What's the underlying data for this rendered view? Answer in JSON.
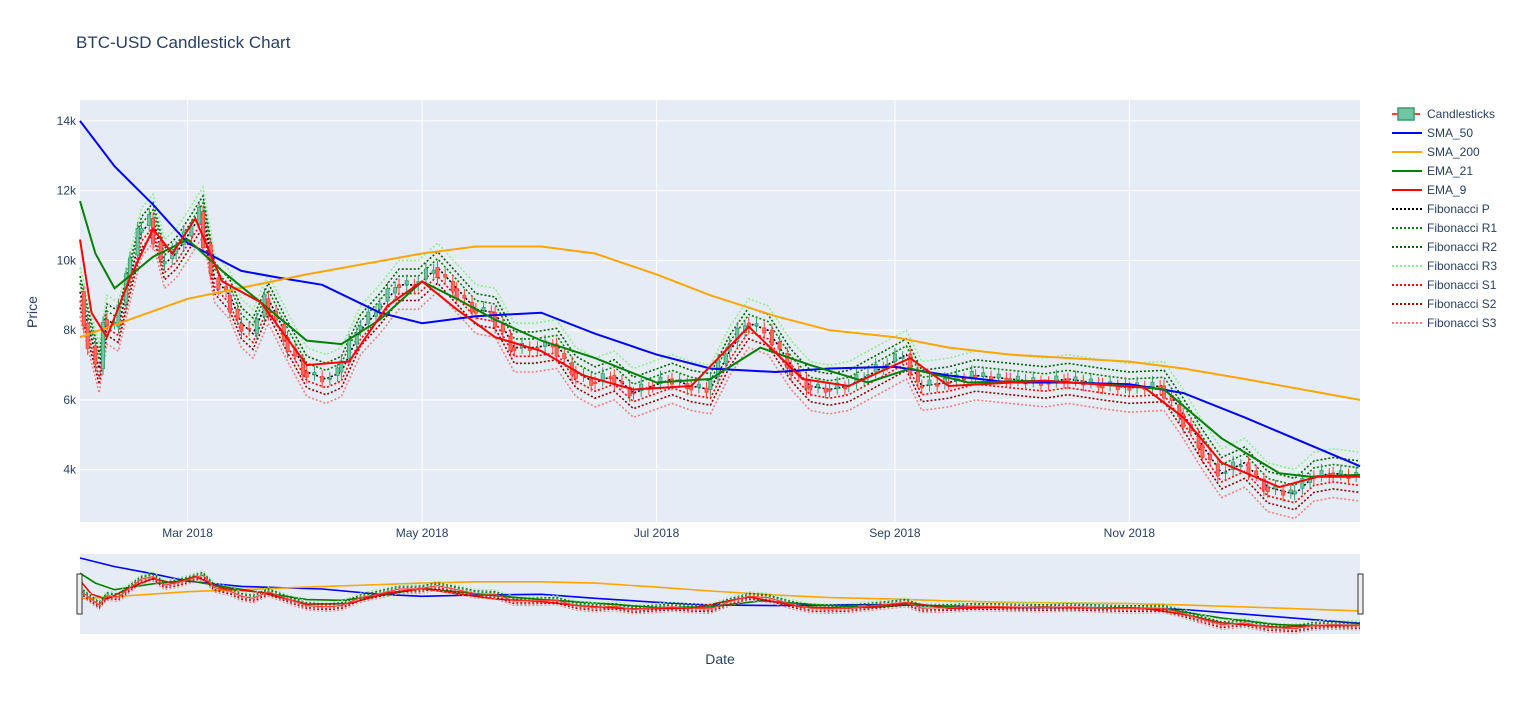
{
  "title": "BTC-USD Candlestick Chart",
  "chart_data": {
    "type": "line",
    "title": "BTC-USD Candlestick Chart",
    "xlabel": "Date",
    "ylabel": "Price",
    "x_range": [
      "2018-02-01",
      "2018-12-31"
    ],
    "ylim": [
      2500,
      14600
    ],
    "y_ticks": [
      4000,
      6000,
      8000,
      10000,
      12000,
      14000
    ],
    "y_tick_labels": [
      "4k",
      "6k",
      "8k",
      "10k",
      "12k",
      "14k"
    ],
    "x_ticks": [
      "2018-03-01",
      "2018-05-01",
      "2018-07-01",
      "2018-09-01",
      "2018-11-01"
    ],
    "x_tick_labels": [
      "Mar 2018",
      "May 2018",
      "Jul 2018",
      "Sep 2018",
      "Nov 2018"
    ],
    "grid": true,
    "background": "#e5ecf6",
    "legend_position": "right",
    "range_slider": true,
    "candlesticks": {
      "name": "Candlesticks",
      "increasing_color": "#3d9970",
      "decreasing_color": "#ff4136",
      "close_points": [
        [
          "2018-02-01",
          9100
        ],
        [
          "2018-02-03",
          8200
        ],
        [
          "2018-02-06",
          6900
        ],
        [
          "2018-02-08",
          8300
        ],
        [
          "2018-02-11",
          8100
        ],
        [
          "2018-02-14",
          9500
        ],
        [
          "2018-02-17",
          10800
        ],
        [
          "2018-02-20",
          11200
        ],
        [
          "2018-02-23",
          9900
        ],
        [
          "2018-02-26",
          10200
        ],
        [
          "2018-03-01",
          10700
        ],
        [
          "2018-03-05",
          11400
        ],
        [
          "2018-03-08",
          9500
        ],
        [
          "2018-03-12",
          9000
        ],
        [
          "2018-03-15",
          8200
        ],
        [
          "2018-03-18",
          7900
        ],
        [
          "2018-03-22",
          8900
        ],
        [
          "2018-03-27",
          7800
        ],
        [
          "2018-04-01",
          6800
        ],
        [
          "2018-04-06",
          6600
        ],
        [
          "2018-04-10",
          6800
        ],
        [
          "2018-04-15",
          8000
        ],
        [
          "2018-04-20",
          8600
        ],
        [
          "2018-04-25",
          9300
        ],
        [
          "2018-04-30",
          9300
        ],
        [
          "2018-05-05",
          9800
        ],
        [
          "2018-05-10",
          9200
        ],
        [
          "2018-05-15",
          8600
        ],
        [
          "2018-05-20",
          8500
        ],
        [
          "2018-05-25",
          7500
        ],
        [
          "2018-05-30",
          7500
        ],
        [
          "2018-06-05",
          7600
        ],
        [
          "2018-06-10",
          6800
        ],
        [
          "2018-06-15",
          6500
        ],
        [
          "2018-06-20",
          6700
        ],
        [
          "2018-06-25",
          6200
        ],
        [
          "2018-06-30",
          6400
        ],
        [
          "2018-07-05",
          6600
        ],
        [
          "2018-07-10",
          6400
        ],
        [
          "2018-07-15",
          6300
        ],
        [
          "2018-07-20",
          7400
        ],
        [
          "2018-07-25",
          8200
        ],
        [
          "2018-07-30",
          8000
        ],
        [
          "2018-08-05",
          7000
        ],
        [
          "2018-08-10",
          6400
        ],
        [
          "2018-08-15",
          6300
        ],
        [
          "2018-08-20",
          6400
        ],
        [
          "2018-08-25",
          6700
        ],
        [
          "2018-08-30",
          7000
        ],
        [
          "2018-09-04",
          7300
        ],
        [
          "2018-09-08",
          6400
        ],
        [
          "2018-09-15",
          6500
        ],
        [
          "2018-09-22",
          6700
        ],
        [
          "2018-10-01",
          6600
        ],
        [
          "2018-10-10",
          6500
        ],
        [
          "2018-10-16",
          6600
        ],
        [
          "2018-10-25",
          6450
        ],
        [
          "2018-11-01",
          6350
        ],
        [
          "2018-11-10",
          6400
        ],
        [
          "2018-11-15",
          5600
        ],
        [
          "2018-11-20",
          4700
        ],
        [
          "2018-11-25",
          3900
        ],
        [
          "2018-12-01",
          4200
        ],
        [
          "2018-12-07",
          3500
        ],
        [
          "2018-12-14",
          3300
        ],
        [
          "2018-12-19",
          3800
        ],
        [
          "2018-12-24",
          3900
        ],
        [
          "2018-12-31",
          3800
        ]
      ]
    },
    "series": [
      {
        "name": "SMA_50",
        "color": "#0000ff",
        "dash": "solid",
        "x": [
          "2018-02-01",
          "2018-02-10",
          "2018-02-20",
          "2018-03-01",
          "2018-03-15",
          "2018-03-25",
          "2018-04-05",
          "2018-04-20",
          "2018-05-01",
          "2018-05-15",
          "2018-06-01",
          "2018-06-15",
          "2018-07-01",
          "2018-07-15",
          "2018-08-01",
          "2018-08-15",
          "2018-09-01",
          "2018-09-15",
          "2018-10-01",
          "2018-10-15",
          "2018-11-01",
          "2018-11-15",
          "2018-12-01",
          "2018-12-31"
        ],
        "values": [
          14000,
          12700,
          11600,
          10500,
          9700,
          9500,
          9300,
          8500,
          8200,
          8400,
          8500,
          7900,
          7300,
          6900,
          6800,
          6900,
          6950,
          6700,
          6500,
          6500,
          6450,
          6200,
          5500,
          4100
        ]
      },
      {
        "name": "SMA_200",
        "color": "#ffa500",
        "dash": "solid",
        "x": [
          "2018-02-01",
          "2018-03-01",
          "2018-04-01",
          "2018-05-01",
          "2018-05-15",
          "2018-06-01",
          "2018-06-15",
          "2018-07-01",
          "2018-07-15",
          "2018-08-01",
          "2018-08-15",
          "2018-09-01",
          "2018-09-15",
          "2018-10-01",
          "2018-11-01",
          "2018-11-15",
          "2018-12-01",
          "2018-12-31"
        ],
        "values": [
          7800,
          8900,
          9600,
          10200,
          10400,
          10400,
          10200,
          9600,
          9000,
          8400,
          8000,
          7800,
          7500,
          7300,
          7100,
          6900,
          6600,
          6000
        ]
      },
      {
        "name": "EMA_21",
        "color": "#008000",
        "dash": "solid",
        "x": [
          "2018-02-01",
          "2018-02-05",
          "2018-02-10",
          "2018-02-20",
          "2018-03-01",
          "2018-03-10",
          "2018-03-20",
          "2018-04-01",
          "2018-04-10",
          "2018-04-20",
          "2018-05-01",
          "2018-05-10",
          "2018-05-20",
          "2018-06-01",
          "2018-06-15",
          "2018-07-01",
          "2018-07-15",
          "2018-07-28",
          "2018-08-10",
          "2018-08-25",
          "2018-09-05",
          "2018-09-20",
          "2018-10-10",
          "2018-11-01",
          "2018-11-10",
          "2018-11-25",
          "2018-12-10",
          "2018-12-18",
          "2018-12-31"
        ],
        "values": [
          11700,
          10200,
          9200,
          10100,
          10600,
          9700,
          8800,
          7700,
          7600,
          8300,
          9400,
          8900,
          8300,
          7700,
          7200,
          6500,
          6600,
          7500,
          7000,
          6500,
          6900,
          6500,
          6550,
          6400,
          6300,
          4900,
          3900,
          3800,
          3850
        ]
      },
      {
        "name": "EMA_9",
        "color": "#ff0000",
        "dash": "solid",
        "x": [
          "2018-02-01",
          "2018-02-04",
          "2018-02-08",
          "2018-02-14",
          "2018-02-20",
          "2018-02-25",
          "2018-03-03",
          "2018-03-10",
          "2018-03-20",
          "2018-04-01",
          "2018-04-12",
          "2018-04-22",
          "2018-05-01",
          "2018-05-10",
          "2018-05-20",
          "2018-06-01",
          "2018-06-12",
          "2018-06-25",
          "2018-07-10",
          "2018-07-25",
          "2018-08-08",
          "2018-08-20",
          "2018-09-05",
          "2018-09-15",
          "2018-10-10",
          "2018-11-05",
          "2018-11-15",
          "2018-11-25",
          "2018-12-10",
          "2018-12-20",
          "2018-12-31"
        ],
        "values": [
          10600,
          8500,
          7800,
          9500,
          10900,
          10200,
          11200,
          9400,
          8800,
          7000,
          7100,
          8700,
          9400,
          8600,
          7800,
          7400,
          6700,
          6300,
          6400,
          8100,
          6600,
          6400,
          7200,
          6400,
          6550,
          6350,
          5500,
          4200,
          3500,
          3800,
          3800
        ]
      },
      {
        "name": "Fibonacci P",
        "color": "#000000",
        "dash": "dot",
        "offset": 0
      },
      {
        "name": "Fibonacci R1",
        "color": "#008000",
        "dash": "dot",
        "offset": 250
      },
      {
        "name": "Fibonacci R2",
        "color": "#006400",
        "dash": "dot",
        "offset": 450
      },
      {
        "name": "Fibonacci R3",
        "color": "#90ee90",
        "dash": "dot",
        "offset": 700
      },
      {
        "name": "Fibonacci S1",
        "color": "#ff0000",
        "dash": "dot",
        "offset": -250
      },
      {
        "name": "Fibonacci S2",
        "color": "#8b0000",
        "dash": "dot",
        "offset": -450
      },
      {
        "name": "Fibonacci S3",
        "color": "#f08080",
        "dash": "dot",
        "offset": -700
      }
    ]
  }
}
